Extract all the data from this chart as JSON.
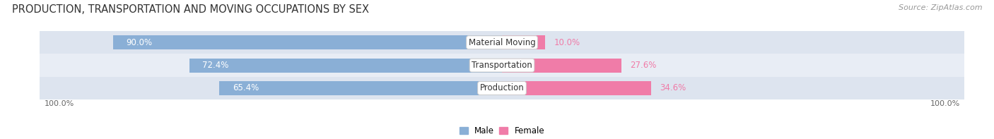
{
  "title": "PRODUCTION, TRANSPORTATION AND MOVING OCCUPATIONS BY SEX",
  "source": "Source: ZipAtlas.com",
  "categories": [
    "Material Moving",
    "Transportation",
    "Production"
  ],
  "male_pcts": [
    90.0,
    72.4,
    65.4
  ],
  "female_pcts": [
    10.0,
    27.6,
    34.6
  ],
  "male_color": "#8aafd6",
  "female_color": "#f07ca8",
  "row_bg_colors": [
    "#dde4ef",
    "#e8edf5",
    "#dde4ef"
  ],
  "title_fontsize": 10.5,
  "source_fontsize": 8,
  "label_fontsize": 8.5,
  "axis_label_fontsize": 8,
  "bar_height": 0.62,
  "figwidth": 14.06,
  "figheight": 1.97,
  "dpi": 100,
  "left_label": "100.0%",
  "right_label": "100.0%"
}
